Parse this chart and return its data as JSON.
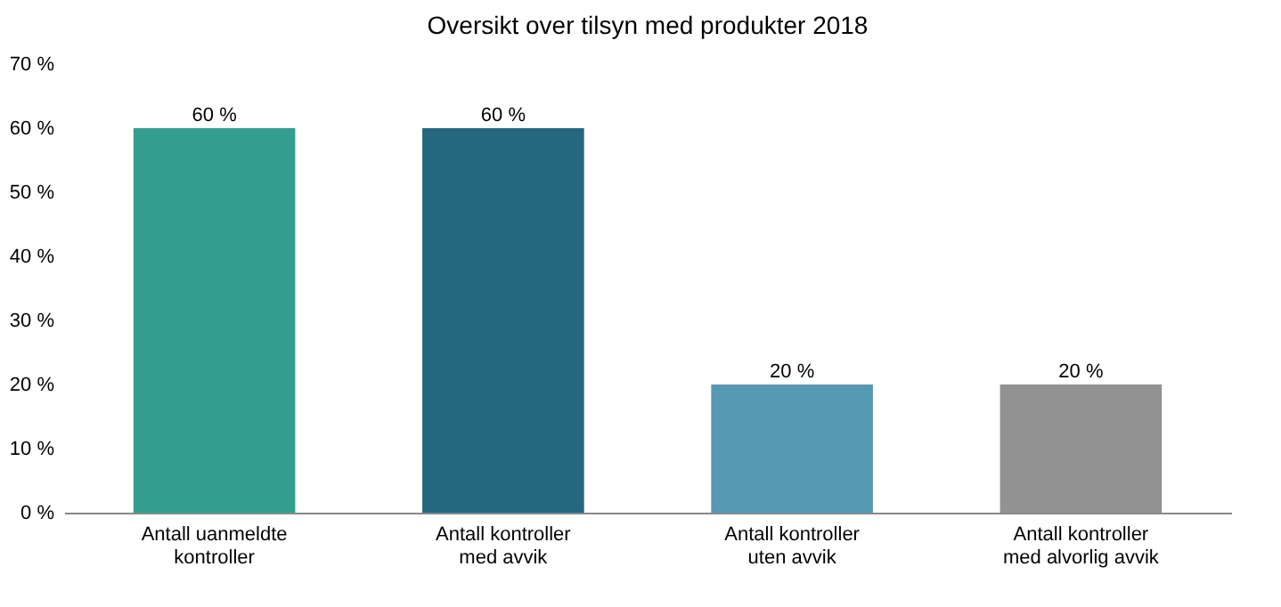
{
  "chart_data": {
    "type": "bar",
    "title": "Oversikt over tilsyn med produkter 2018",
    "categories": [
      "Antall uanmeldte\nkontroller",
      "Antall kontroller\nmed avvik",
      "Antall kontroller\nuten avvik",
      "Antall kontroller\nmed alvorlig avvik"
    ],
    "values": [
      60,
      60,
      20,
      20
    ],
    "colors": [
      "#339e8f",
      "#25677f",
      "#5599b2",
      "#929292"
    ],
    "value_labels": [
      "60 %",
      "60 %",
      "20 %",
      "20 %"
    ],
    "ylim": [
      0,
      70
    ],
    "yticks": [
      {
        "value": 0,
        "label": "0 %"
      },
      {
        "value": 10,
        "label": "10 %"
      },
      {
        "value": 20,
        "label": "20 %"
      },
      {
        "value": 30,
        "label": "30 %"
      },
      {
        "value": 40,
        "label": "40 %"
      },
      {
        "value": 50,
        "label": "50 %"
      },
      {
        "value": 60,
        "label": "60 %"
      },
      {
        "value": 70,
        "label": "70 %"
      }
    ],
    "grid": false
  }
}
